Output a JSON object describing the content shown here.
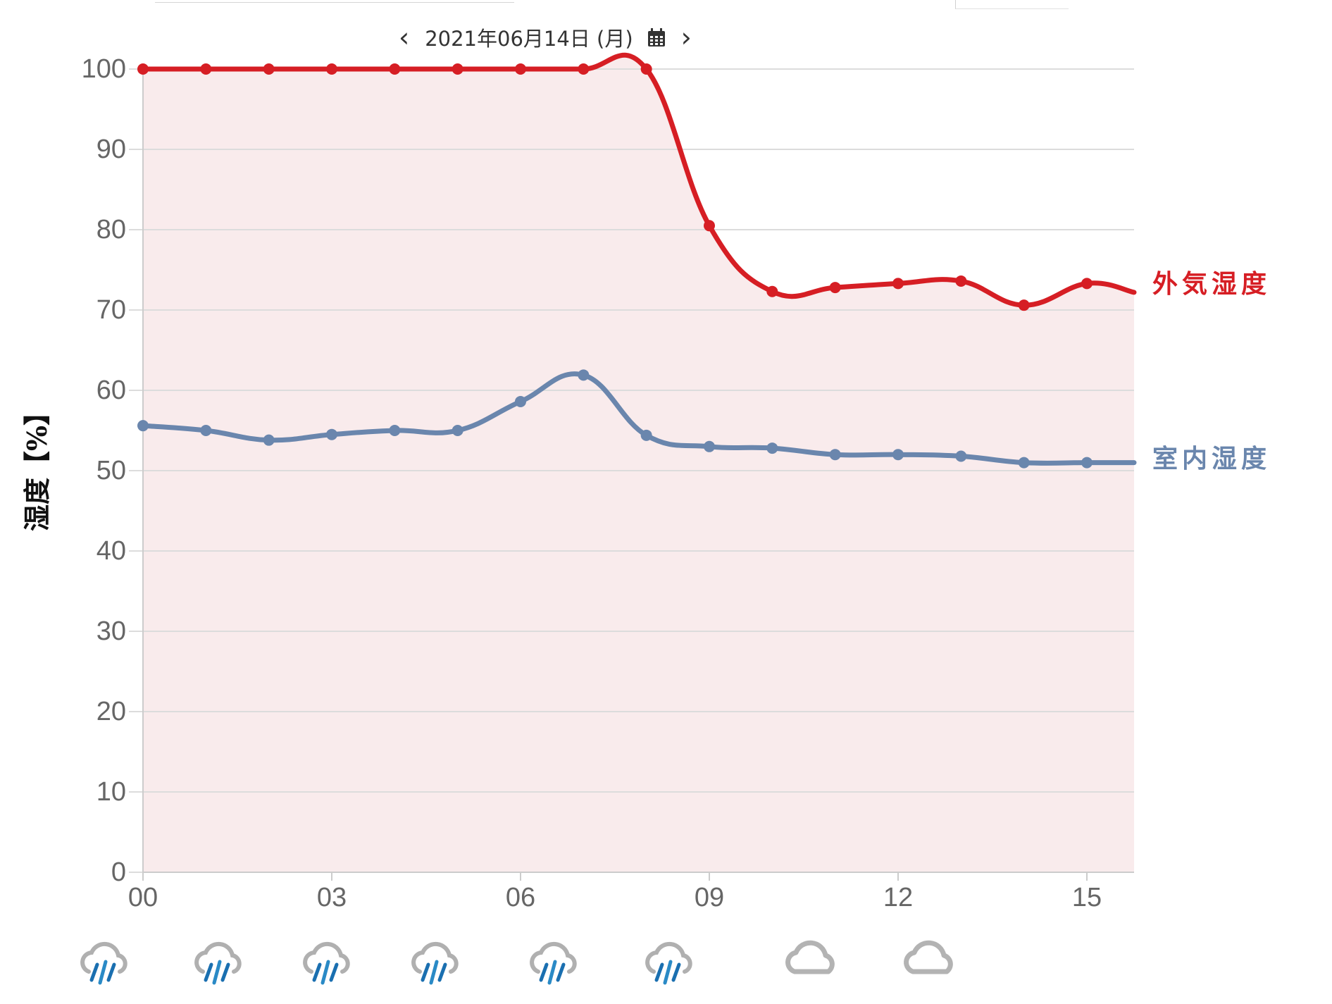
{
  "date_nav": {
    "prev_icon": "chevron-left-icon",
    "label": "2021年06月14日 (月)",
    "calendar_icon": "calendar-icon",
    "next_icon": "chevron-right-icon"
  },
  "chart_data": {
    "type": "line",
    "ylabel": "湿度【%】",
    "ylim": [
      0,
      100
    ],
    "y_ticks": [
      "0",
      "10",
      "20",
      "30",
      "40",
      "50",
      "60",
      "70",
      "80",
      "90",
      "100"
    ],
    "x_tick_labels": [
      "00",
      "03",
      "06",
      "09",
      "12",
      "15"
    ],
    "x_tick_hours": [
      0,
      3,
      6,
      9,
      12,
      15
    ],
    "x_range_hours": [
      0,
      15.75
    ],
    "grid": true,
    "series": [
      {
        "name": "外気湿度",
        "color": "#d61e24",
        "fill_color": "#f9ebec",
        "fill": true,
        "x": [
          0,
          1,
          2,
          3,
          4,
          5,
          6,
          7,
          8,
          9,
          10,
          11,
          12,
          13,
          14,
          15,
          15.75
        ],
        "values": [
          100,
          100,
          100,
          100,
          100,
          100,
          100,
          100,
          100,
          80.5,
          72.3,
          72.8,
          73.3,
          73.6,
          70.6,
          73.3,
          72.2
        ]
      },
      {
        "name": "室内湿度",
        "color": "#6a86ad",
        "fill": false,
        "x": [
          0,
          1,
          2,
          3,
          4,
          5,
          6,
          7,
          8,
          9,
          10,
          11,
          12,
          13,
          14,
          15,
          15.75
        ],
        "values": [
          55.6,
          55.0,
          53.8,
          54.5,
          55.0,
          55.0,
          58.6,
          61.9,
          54.4,
          53.0,
          52.8,
          52.0,
          52.0,
          51.8,
          51.0,
          51.0,
          51.0
        ]
      }
    ],
    "weather_icons": [
      "rain-icon",
      "rain-icon",
      "rain-icon",
      "rain-icon",
      "rain-icon",
      "rain-icon",
      "cloud-icon",
      "cloud-icon"
    ]
  }
}
